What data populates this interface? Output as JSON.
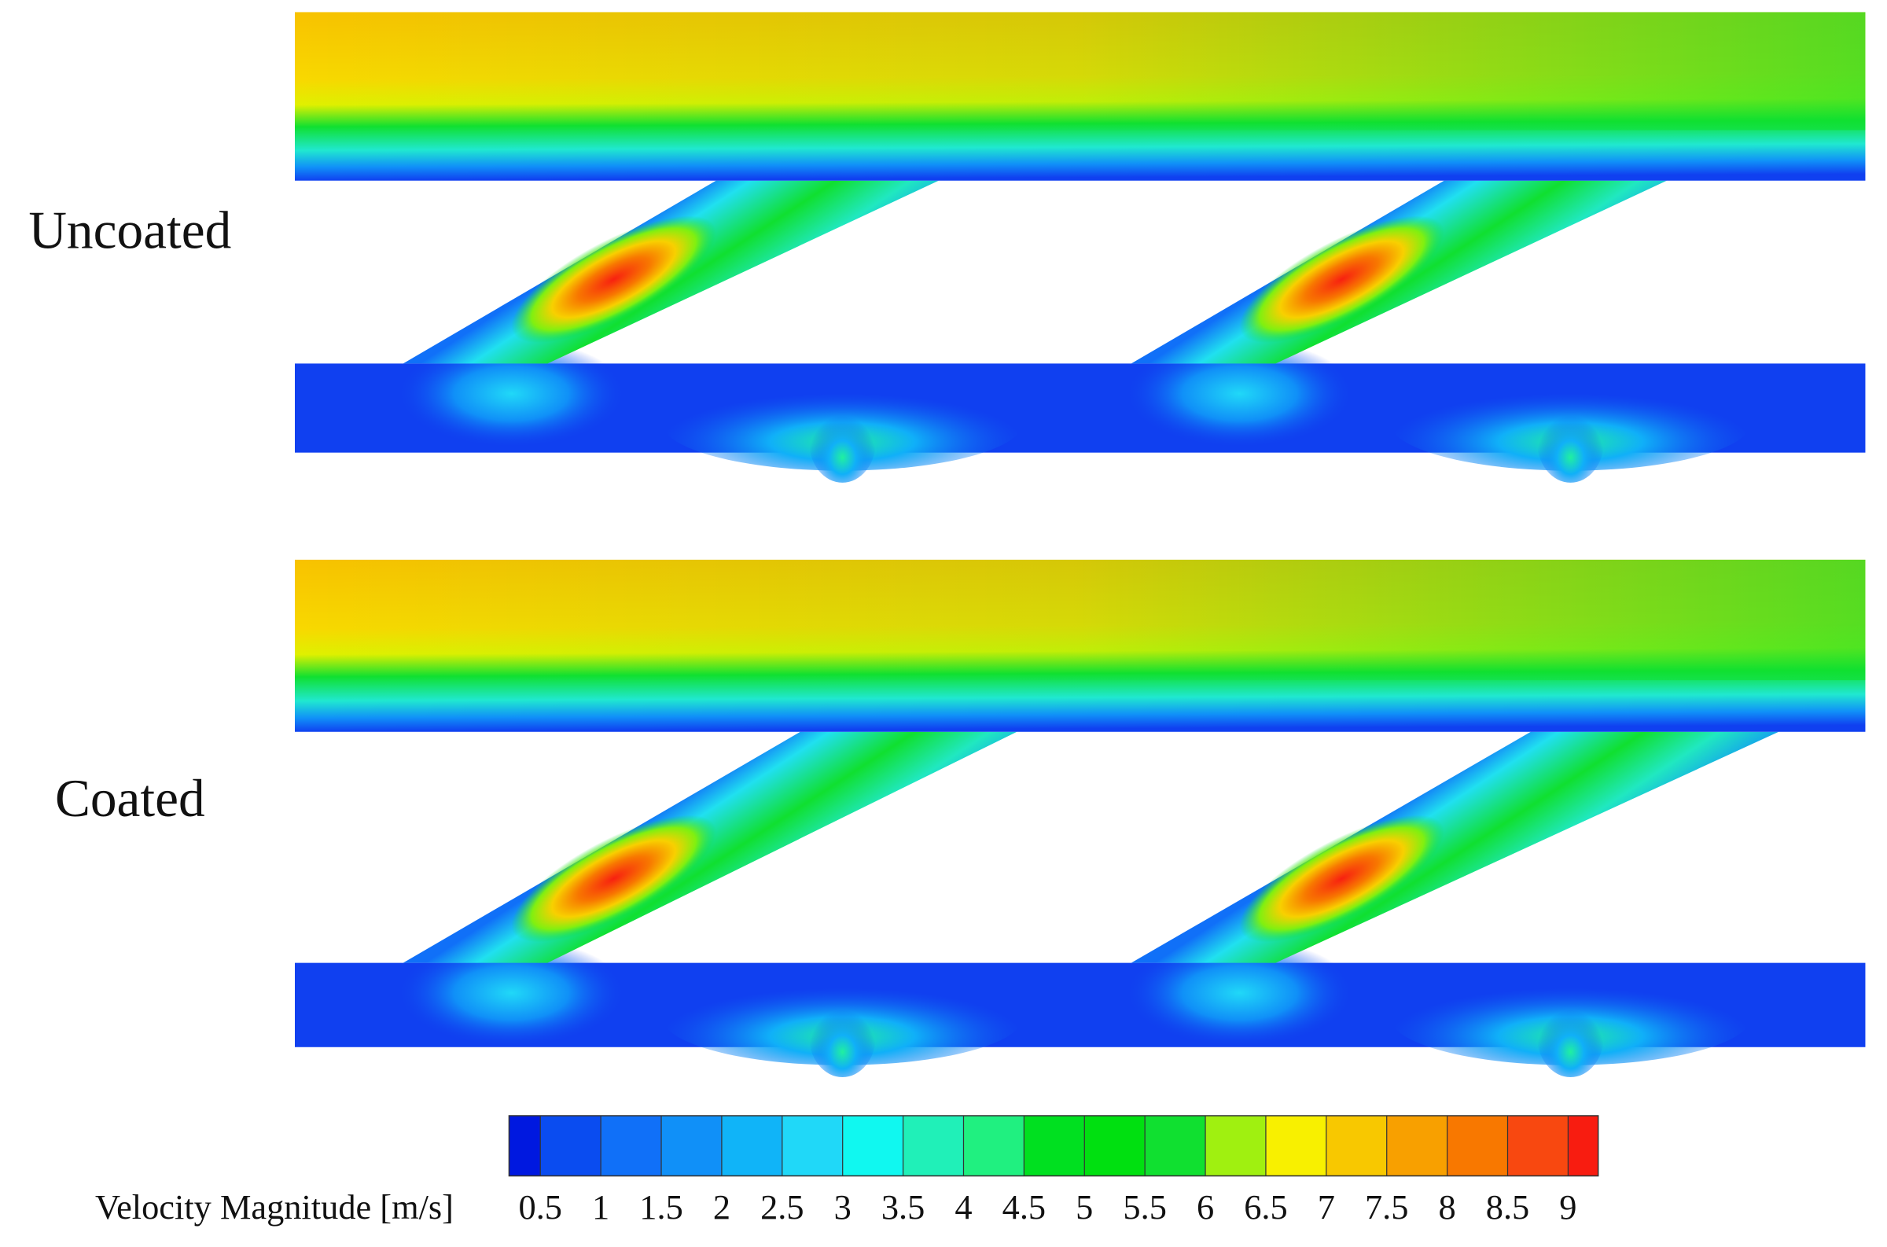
{
  "panels": [
    {
      "label": "Uncoated"
    },
    {
      "label": "Coated"
    }
  ],
  "colorbar": {
    "title": "Velocity Magnitude [m/s]",
    "ticks": [
      0.5,
      1,
      1.5,
      2,
      2.5,
      3,
      3.5,
      4,
      4.5,
      5,
      5.5,
      6,
      6.5,
      7,
      7.5,
      8,
      8.5,
      9
    ],
    "colors": [
      "#0018e0",
      "#0a4cf0",
      "#1070f8",
      "#1090f8",
      "#10b4f8",
      "#20d8f8",
      "#10f8f0",
      "#20f0b8",
      "#20f080",
      "#00e020",
      "#00e010",
      "#10e030",
      "#a0f010",
      "#f8f000",
      "#f8c800",
      "#f8a000",
      "#f87800",
      "#f84810",
      "#f81c10"
    ]
  }
}
